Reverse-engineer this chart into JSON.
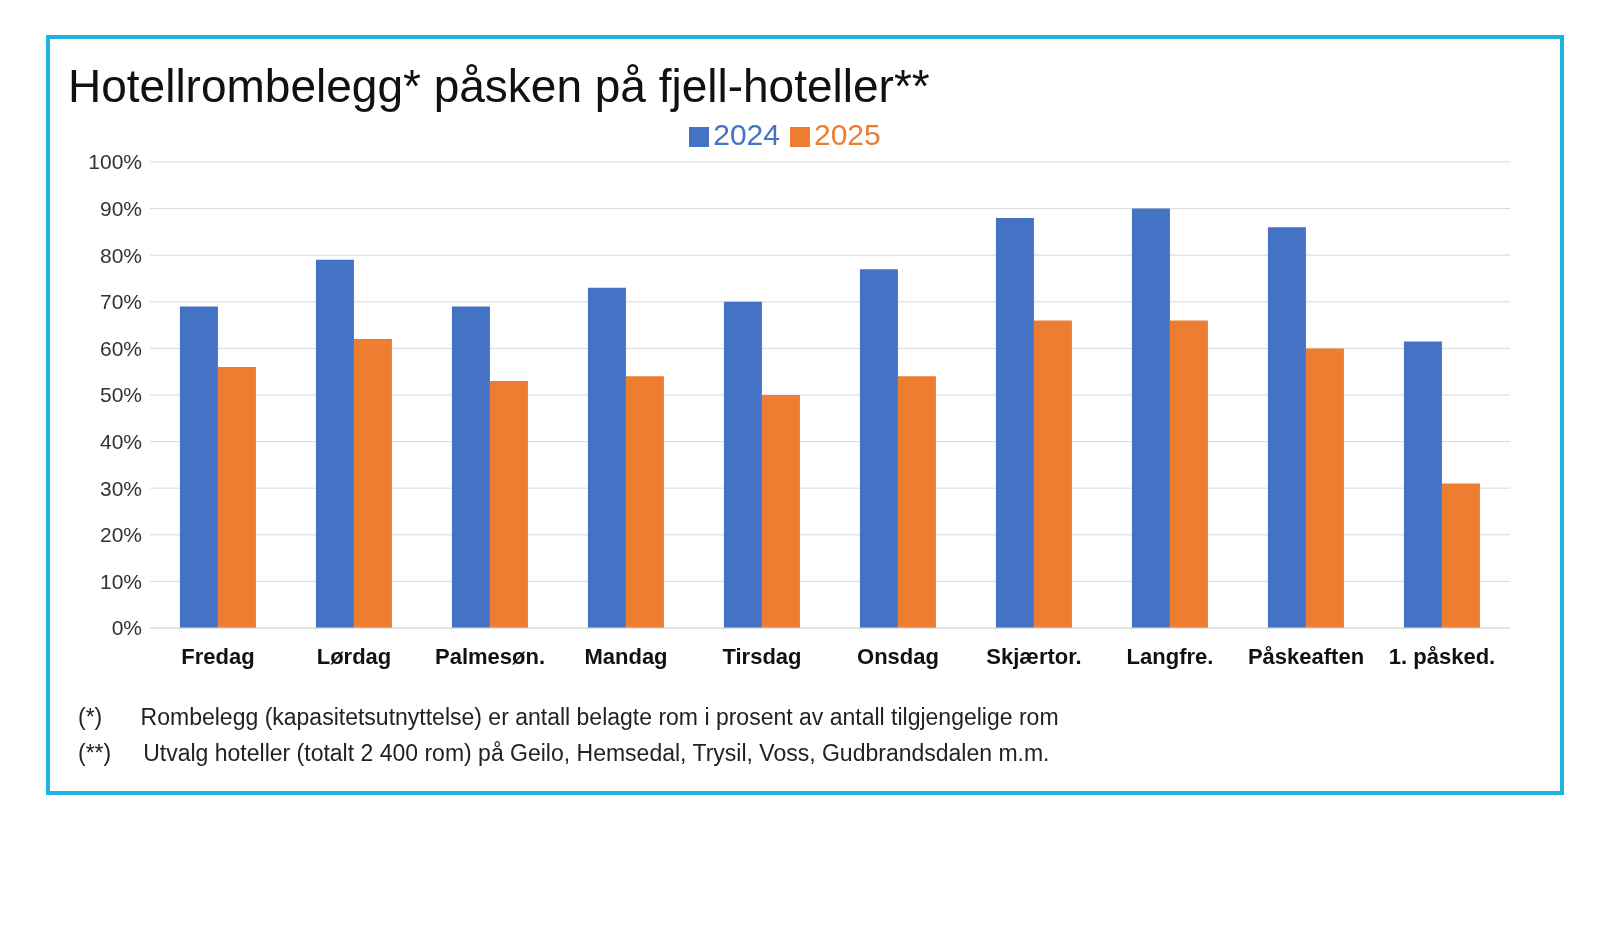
{
  "chart_data": {
    "type": "bar",
    "title": "Hotellrombelegg* påsken på fjell-hoteller**",
    "categories": [
      "Fredag",
      "Lørdag",
      "Palmesøn.",
      "Mandag",
      "Tirsdag",
      "Onsdag",
      "Skjærtor.",
      "Langfre.",
      "Påskeaften",
      "1. påsked."
    ],
    "series": [
      {
        "name": "2024",
        "color": "#4472c4",
        "values": [
          69,
          79,
          69,
          73,
          70,
          77,
          88,
          90,
          86,
          61.5
        ]
      },
      {
        "name": "2025",
        "color": "#ed7d31",
        "values": [
          56,
          62,
          53,
          54,
          50,
          54,
          66,
          66,
          60,
          31
        ]
      }
    ],
    "ylim": [
      0,
      100
    ],
    "yticks": [
      {
        "value": 0,
        "label": "0%"
      },
      {
        "value": 10,
        "label": "10%"
      },
      {
        "value": 20,
        "label": "20%"
      },
      {
        "value": 30,
        "label": "30%"
      },
      {
        "value": 40,
        "label": "40%"
      },
      {
        "value": 50,
        "label": "50%"
      },
      {
        "value": 60,
        "label": "60%"
      },
      {
        "value": 70,
        "label": "70%"
      },
      {
        "value": 80,
        "label": "80%"
      },
      {
        "value": 90,
        "label": "90%"
      },
      {
        "value": 100,
        "label": "100%"
      }
    ],
    "grid": "y",
    "legend": "top",
    "annotations": [
      "(*)      Rombelegg (kapasitetsutnyttelse) er antall belagte rom i prosent av antall tilgjengelige rom",
      "(**)     Utvalg hoteller (totalt 2 400 rom) på Geilo, Hemsedal, Trysil, Voss, Gudbrandsdalen m.m."
    ]
  }
}
